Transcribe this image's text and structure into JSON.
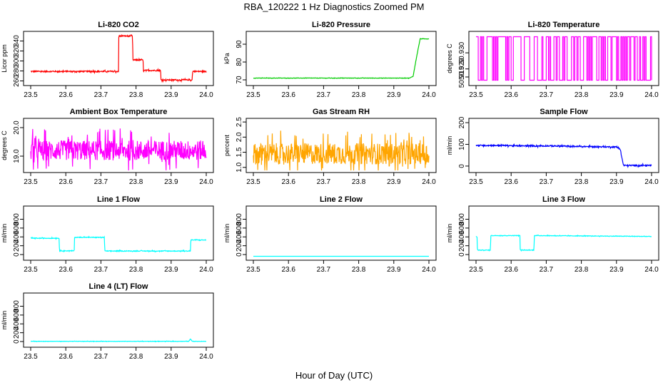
{
  "figure": {
    "title": "RBA_120222  1 Hz Diagnostics Zoomed PM",
    "xlabel": "Hour of Day (UTC)"
  },
  "chart_data": [
    {
      "type": "line",
      "title": "Li-820 CO2",
      "ylabel": "Licor ppm",
      "color": "#ff0000",
      "xlim": [
        23.5,
        24.0
      ],
      "ylim": [
        255,
        355
      ],
      "xticks": [
        "23.5",
        "23.6",
        "23.7",
        "23.8",
        "23.9",
        "24.0"
      ],
      "yticks": [
        260,
        280,
        300,
        320,
        340
      ],
      "noise": 1.2,
      "series": [
        {
          "x": [
            23.5,
            23.75,
            23.751,
            23.79,
            23.791,
            23.82,
            23.821,
            23.87,
            23.871,
            23.94,
            23.941,
            23.96,
            23.961,
            24.0
          ],
          "y": [
            279,
            279,
            350,
            350,
            302,
            302,
            281,
            281,
            262,
            262,
            262,
            262,
            279,
            279
          ]
        }
      ]
    },
    {
      "type": "line",
      "title": "Li-820 Pressure",
      "ylabel": "kPa",
      "color": "#00cc00",
      "xlim": [
        23.5,
        24.0
      ],
      "ylim": [
        68,
        96
      ],
      "xticks": [
        "23.5",
        "23.6",
        "23.7",
        "23.8",
        "23.9",
        "24.0"
      ],
      "yticks": [
        70,
        80,
        90
      ],
      "noise": 0.1,
      "series": [
        {
          "x": [
            23.5,
            23.93,
            23.945,
            23.955,
            23.965,
            23.975,
            24.0
          ],
          "y": [
            71,
            71,
            71,
            72,
            83,
            93,
            93
          ]
        }
      ]
    },
    {
      "type": "line",
      "title": "Li-820 Temperature",
      "ylabel": "degrees C",
      "color": "#ff00ff",
      "xlim": [
        23.5,
        24.0
      ],
      "ylim": [
        50.911,
        50.942
      ],
      "xticks": [
        "23.5",
        "23.6",
        "23.7",
        "23.8",
        "23.9",
        "24.0"
      ],
      "yticks": [
        50.915,
        50.92,
        50.93
      ],
      "ytick_labels": [
        "50.915",
        "50.920",
        "50.930"
      ],
      "noise": 0,
      "style": "square-oscillation",
      "levels": [
        50.913,
        50.94
      ],
      "series": [
        {
          "x": [
            23.5,
            24.0
          ],
          "y": [
            50.913,
            50.94
          ]
        }
      ]
    },
    {
      "type": "line",
      "title": "Ambient Box Temperature",
      "ylabel": "degrees C",
      "color": "#ff00ff",
      "xlim": [
        23.5,
        24.0
      ],
      "ylim": [
        18.5,
        20.25
      ],
      "xticks": [
        "23.5",
        "23.6",
        "23.7",
        "23.8",
        "23.9",
        "24.0"
      ],
      "yticks": [
        19.0,
        20.0
      ],
      "ytick_labels": [
        "19.0",
        "20.0"
      ],
      "noise": 0.35,
      "series": [
        {
          "x": [
            23.5,
            24.0
          ],
          "y": [
            19.2,
            19.2
          ]
        }
      ]
    },
    {
      "type": "line",
      "title": "Gas Stream RH",
      "ylabel": "percent",
      "color": "#ffa500",
      "xlim": [
        23.5,
        24.0
      ],
      "ylim": [
        0.9,
        2.55
      ],
      "xticks": [
        "23.5",
        "23.6",
        "23.7",
        "23.8",
        "23.9",
        "24.0"
      ],
      "yticks": [
        1.0,
        1.5,
        2.0,
        2.5
      ],
      "ytick_labels": [
        "1.0",
        "1.5",
        "2.0",
        "2.5"
      ],
      "noise": 0.35,
      "series": [
        {
          "x": [
            23.5,
            24.0
          ],
          "y": [
            1.45,
            1.45
          ]
        }
      ]
    },
    {
      "type": "line",
      "title": "Sample Flow",
      "ylabel": "ml/min",
      "color": "#0000ff",
      "xlim": [
        23.5,
        24.0
      ],
      "ylim": [
        -20,
        210
      ],
      "xticks": [
        "23.5",
        "23.6",
        "23.7",
        "23.8",
        "23.9",
        "24.0"
      ],
      "yticks": [
        0,
        100,
        200
      ],
      "noise": 3,
      "series": [
        {
          "x": [
            23.5,
            23.6,
            23.601,
            23.71,
            23.8,
            23.9,
            23.91,
            23.92,
            24.0
          ],
          "y": [
            95,
            95,
            93,
            93,
            90,
            88,
            80,
            3,
            3
          ]
        }
      ]
    },
    {
      "type": "line",
      "title": "Line 1 Flow",
      "ylabel": "ml/min",
      "color": "#00ffff",
      "xlim": [
        23.5,
        24.0
      ],
      "ylim": [
        -80,
        1050
      ],
      "xticks": [
        "23.5",
        "23.6",
        "23.7",
        "23.8",
        "23.9",
        "24.0"
      ],
      "yticks": [
        0,
        200,
        400,
        600,
        800
      ],
      "noise": 8,
      "series": [
        {
          "x": [
            23.5,
            23.581,
            23.582,
            23.624,
            23.625,
            23.71,
            23.711,
            23.955,
            23.956,
            24.0
          ],
          "y": [
            370,
            370,
            85,
            85,
            390,
            390,
            80,
            80,
            330,
            330
          ]
        }
      ]
    },
    {
      "type": "line",
      "title": "Line 2 Flow",
      "ylabel": "ml/min",
      "color": "#00ffff",
      "xlim": [
        23.5,
        24.0
      ],
      "ylim": [
        -80,
        1050
      ],
      "xticks": [
        "23.5",
        "23.6",
        "23.7",
        "23.8",
        "23.9",
        "24.0"
      ],
      "yticks": [
        0,
        200,
        400,
        600,
        800
      ],
      "noise": 0,
      "series": [
        {
          "x": [
            23.5,
            24.0
          ],
          "y": [
            -40,
            -40
          ]
        }
      ]
    },
    {
      "type": "line",
      "title": "Line 3 Flow",
      "ylabel": "ml/min",
      "color": "#00ffff",
      "xlim": [
        23.5,
        24.0
      ],
      "ylim": [
        -80,
        1050
      ],
      "xticks": [
        "23.5",
        "23.6",
        "23.7",
        "23.8",
        "23.9",
        "24.0"
      ],
      "yticks": [
        0,
        200,
        400,
        600,
        800
      ],
      "noise": 6,
      "series": [
        {
          "x": [
            23.5,
            23.503,
            23.504,
            23.541,
            23.542,
            23.625,
            23.626,
            23.665,
            23.666,
            24.0
          ],
          "y": [
            400,
            400,
            100,
            100,
            430,
            430,
            100,
            100,
            430,
            410
          ]
        }
      ]
    },
    {
      "type": "line",
      "title": "Line 4 (LT) Flow",
      "ylabel": "ml/min",
      "color": "#00ffff",
      "xlim": [
        23.5,
        24.0
      ],
      "ylim": [
        -80,
        1050
      ],
      "xticks": [
        "23.5",
        "23.6",
        "23.7",
        "23.8",
        "23.9",
        "24.0"
      ],
      "yticks": [
        0,
        200,
        400,
        600,
        800
      ],
      "noise": 4,
      "series": [
        {
          "x": [
            23.5,
            23.95,
            23.955,
            23.96,
            24.0
          ],
          "y": [
            5,
            5,
            60,
            5,
            5
          ]
        }
      ]
    }
  ]
}
